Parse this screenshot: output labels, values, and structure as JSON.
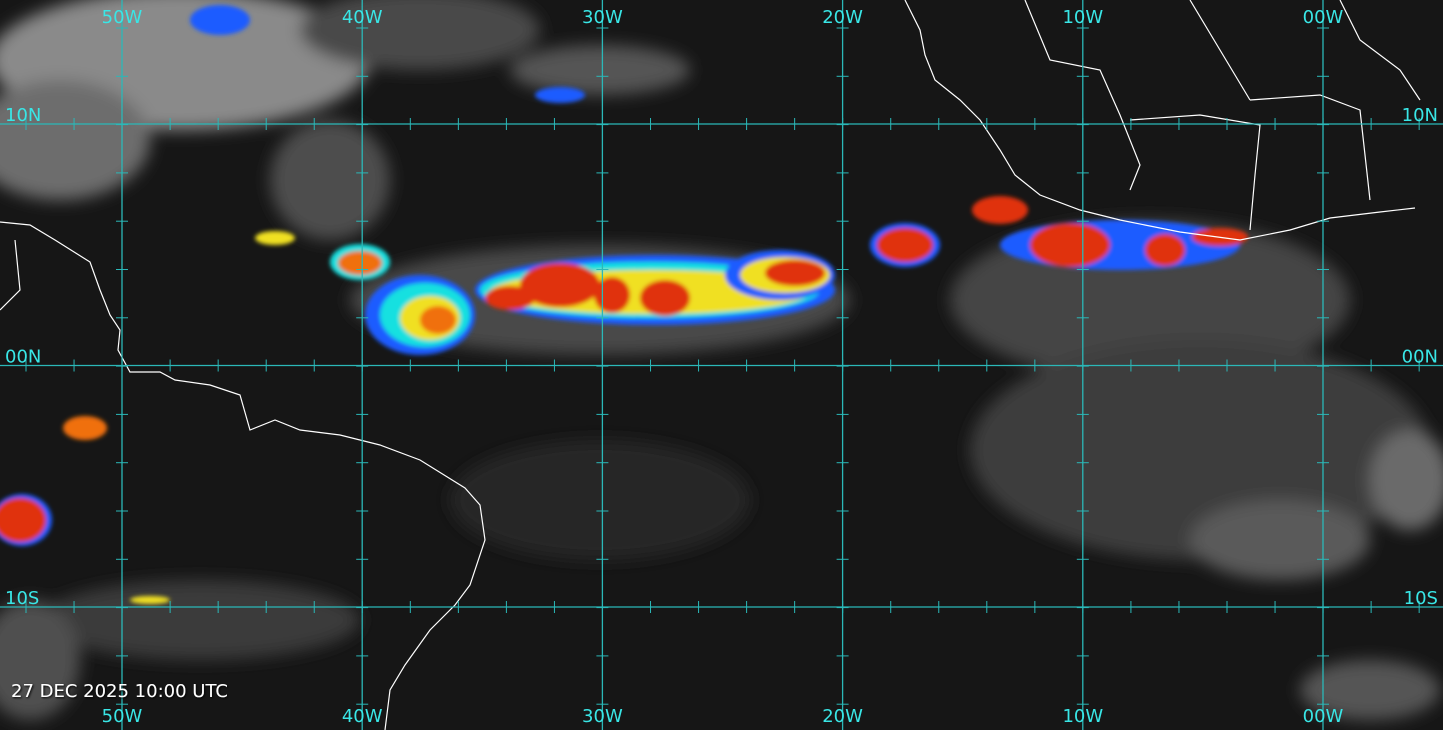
{
  "map": {
    "lon_labels": [
      "50W",
      "40W",
      "30W",
      "20W",
      "10W",
      "00W"
    ],
    "lat_labels": [
      "10N",
      "00N",
      "10S"
    ],
    "timestamp": "27 DEC 2025 10:00 UTC"
  }
}
